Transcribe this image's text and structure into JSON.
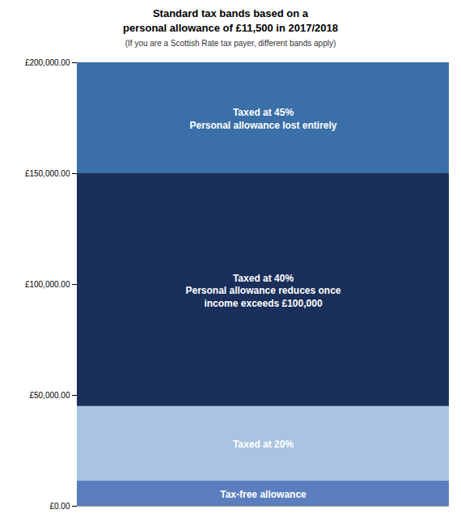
{
  "chart_data": {
    "type": "bar",
    "title": "Standard tax bands based on a\npersonal allowance of £11,500 in 2017/2018",
    "subtitle": "(If you are a Scottish Rate tax payer, different bands apply)",
    "categories": [
      null
    ],
    "series": [
      {
        "name": "Tax-free allowance",
        "color": "#5b7fbe",
        "values": [
          11500
        ]
      },
      {
        "name": "Taxed at 20%",
        "color": "#a8c4e0",
        "values": [
          33500
        ]
      },
      {
        "name": "Taxed at 40%\nPersonal allowance reduces once\nincome exceeds £100,000",
        "color": "#1a2f5a",
        "values": [
          105000
        ]
      },
      {
        "name": "Taxed at 45%\nPersonal allowance lost entirely",
        "color": "#3a6fa8",
        "values": [
          50000
        ]
      }
    ],
    "stacked": true,
    "tick_labels": "y",
    "ylim": [
      0,
      200000
    ],
    "yticks": [
      {
        "value": 0,
        "label": "£0.00"
      },
      {
        "value": 50000,
        "label": "£50,000.00"
      },
      {
        "value": 100000,
        "label": "£100,000.00"
      },
      {
        "value": 150000,
        "label": "£150,000.00"
      },
      {
        "value": 200000,
        "label": "£200,000.00"
      }
    ]
  }
}
